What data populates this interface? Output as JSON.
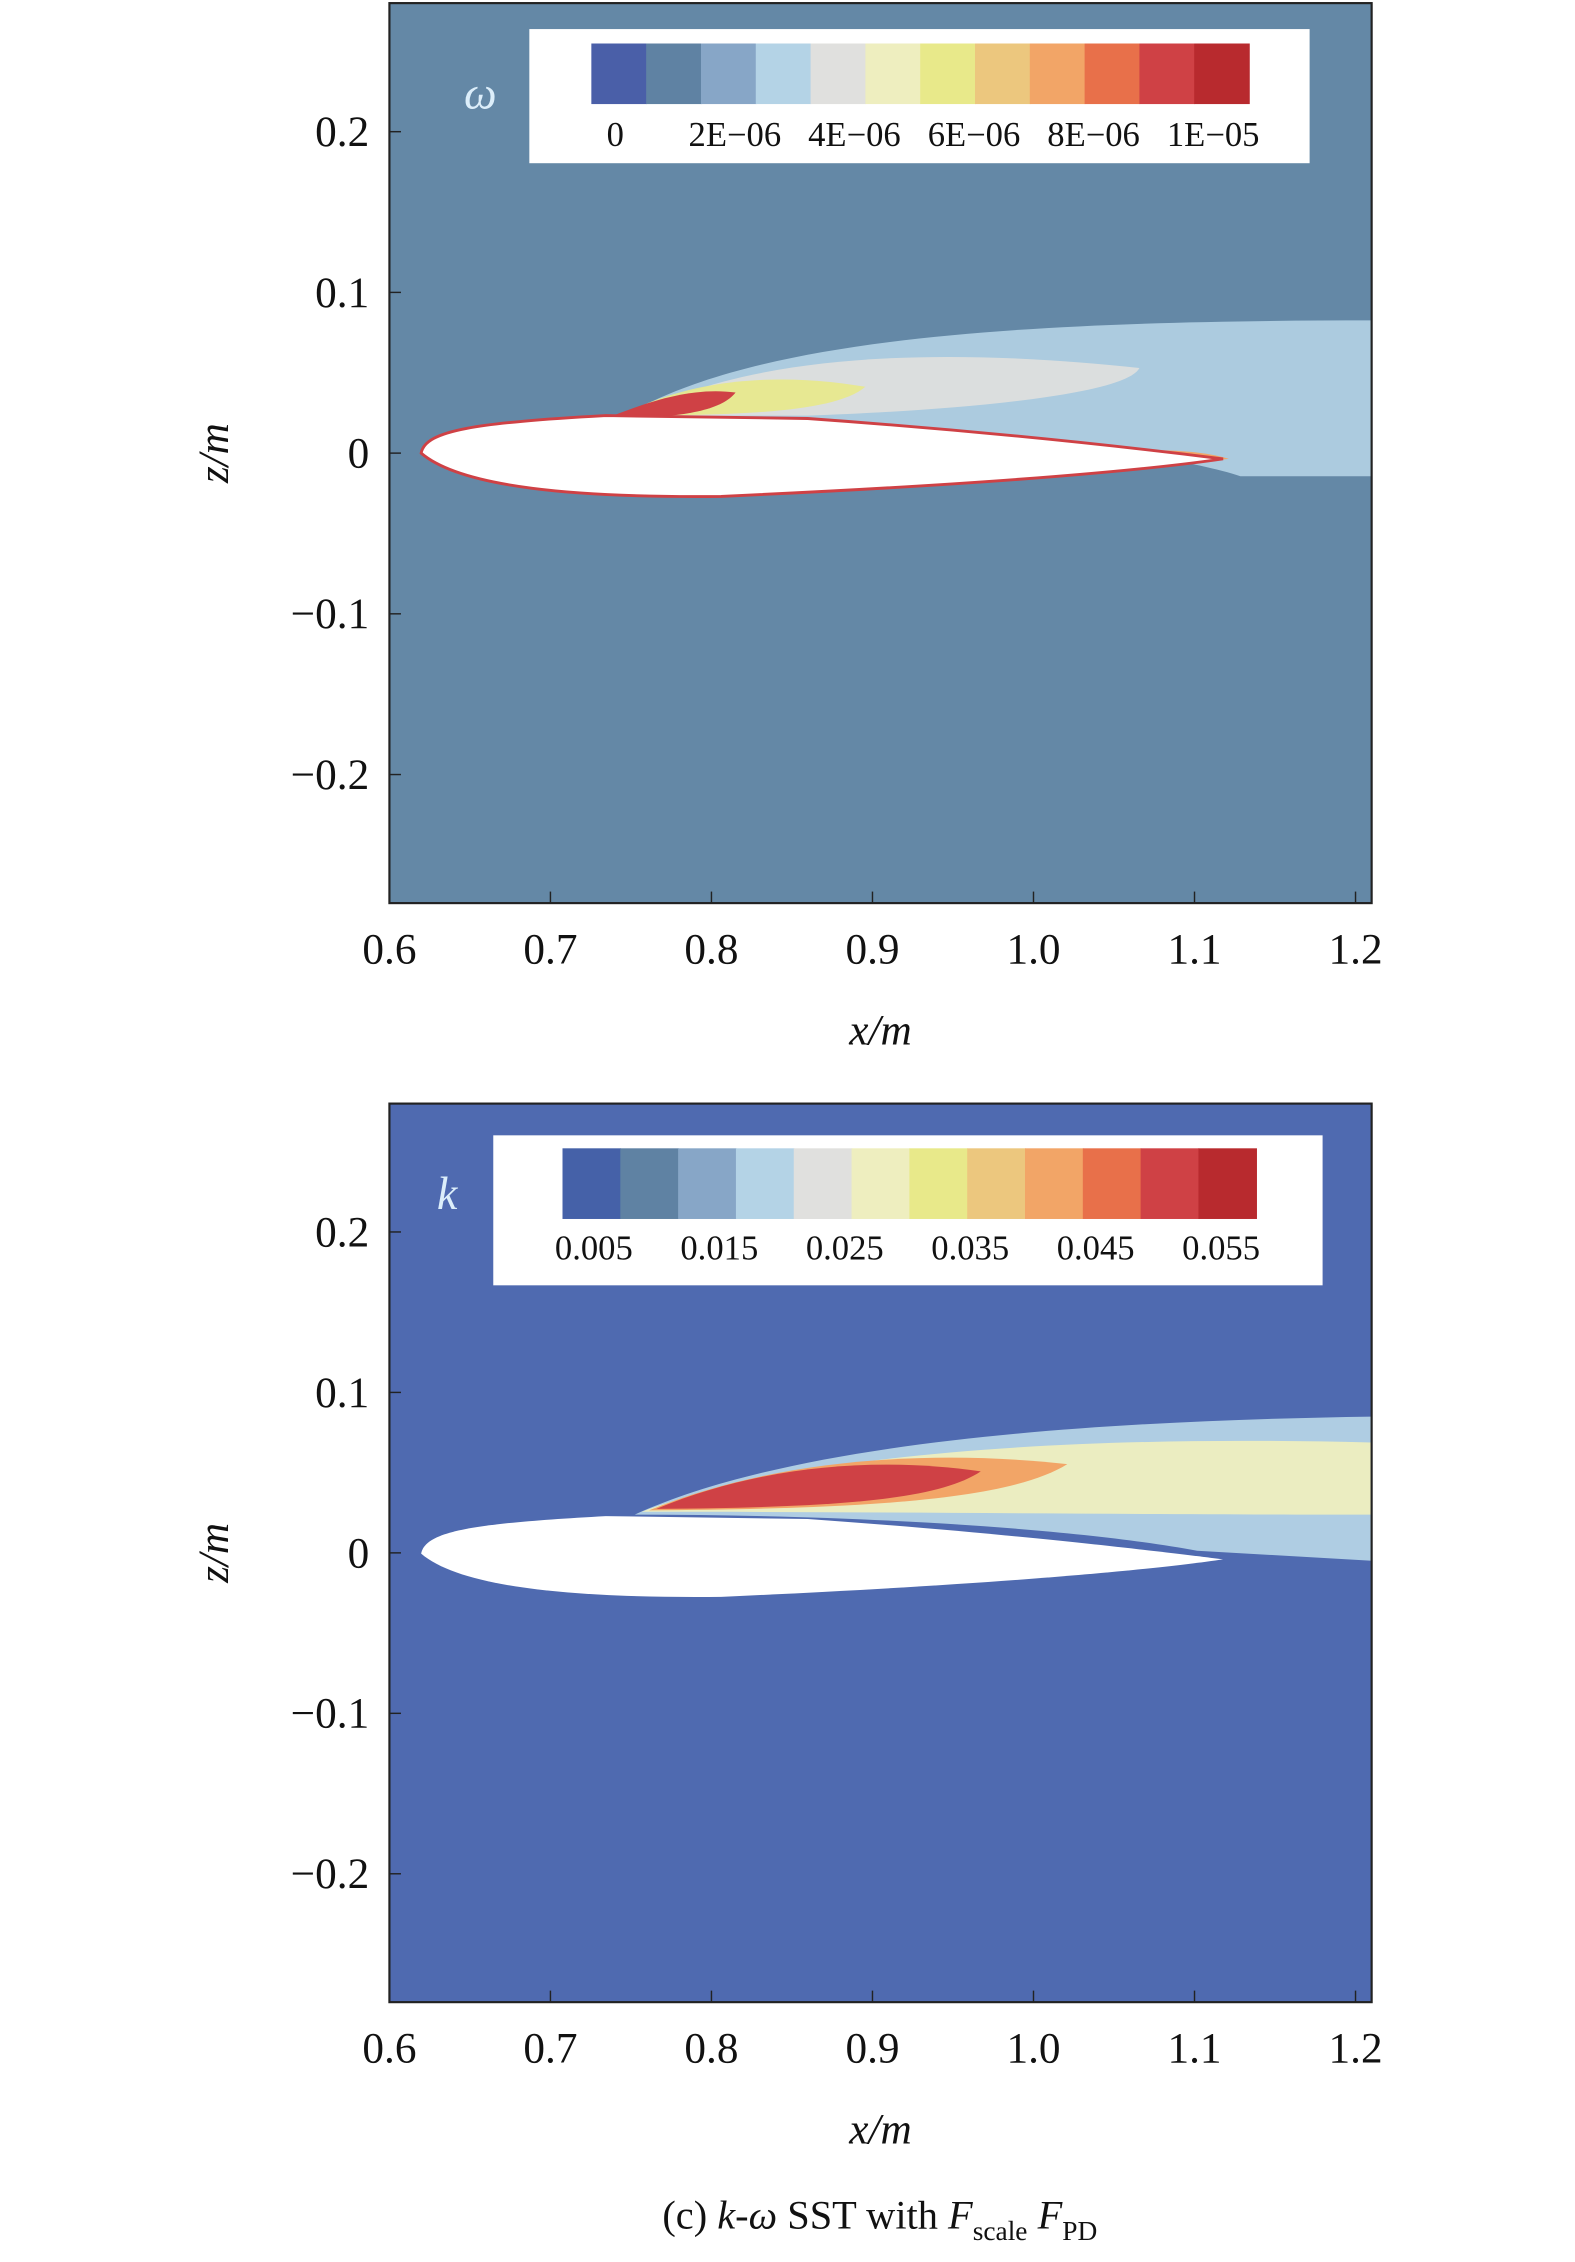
{
  "chart_data": [
    {
      "type": "contour",
      "variable_label": "ω",
      "xlabel": "x/m",
      "ylabel": "z/m",
      "background": "#6488a6",
      "xlim": [
        0.6,
        1.21
      ],
      "xticks": [
        0.6,
        0.7,
        0.8,
        0.9,
        {
          "value": 1,
          "label": "1.0"
        },
        1.1,
        1.2
      ],
      "ylim": [
        -0.28,
        0.28
      ],
      "yticks": [
        {
          "value": -0.2,
          "label": "−0.2"
        },
        {
          "value": -0.1,
          "label": "−0.1"
        },
        0,
        0.1,
        0.2
      ],
      "colorbar": {
        "colors": [
          "#4a5fa8",
          "#5f82a3",
          "#87a6c7",
          "#b4d3e6",
          "#e0e0de",
          "#eeeebf",
          "#e8e98a",
          "#ecc77e",
          "#f2a567",
          "#e8704a",
          "#cf4145",
          "#b82a2e"
        ],
        "lim": [
          -4e-07,
          1.06e-05
        ],
        "ticks": [
          0,
          {
            "value": 2e-06,
            "label": "2E−06"
          },
          {
            "value": 4e-06,
            "label": "4E−06"
          },
          {
            "value": 6e-06,
            "label": "6E−06"
          },
          {
            "value": 8e-06,
            "label": "8E−06"
          },
          {
            "value": 1e-05,
            "label": "1E−05"
          }
        ]
      }
    },
    {
      "type": "contour",
      "variable_label": "k",
      "xlabel": "x/m",
      "ylabel": "z/m",
      "background": "#4f6ab0",
      "xlim": [
        0.6,
        1.21
      ],
      "xticks": [
        0.6,
        0.7,
        0.8,
        0.9,
        {
          "value": 1,
          "label": "1.0"
        },
        1.1,
        1.2
      ],
      "ylim": [
        -0.28,
        0.28
      ],
      "yticks": [
        {
          "value": -0.2,
          "label": "−0.2"
        },
        {
          "value": -0.1,
          "label": "−0.1"
        },
        0,
        0.1,
        0.2
      ],
      "colorbar": {
        "colors": [
          "#4561a8",
          "#5f82a3",
          "#87a6c7",
          "#b4d3e6",
          "#e0e0de",
          "#eeeebf",
          "#e8e98a",
          "#ecc77e",
          "#f2a567",
          "#e8704a",
          "#cf4145",
          "#b82a2e"
        ],
        "lim": [
          0.0025,
          0.0578
        ],
        "ticks": [
          0.005,
          0.015,
          0.025,
          0.035,
          0.045,
          0.055
        ]
      }
    }
  ],
  "caption": {
    "prefix": "(c)",
    "model": "k-ω",
    "suffix": "SST with",
    "symbol1": "F",
    "sub1": "scale",
    "symbol2": "F",
    "sub2": "PD"
  }
}
